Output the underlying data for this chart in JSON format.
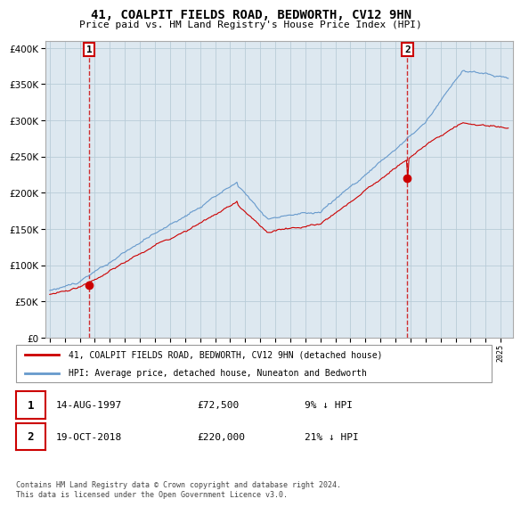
{
  "title": "41, COALPIT FIELDS ROAD, BEDWORTH, CV12 9HN",
  "subtitle": "Price paid vs. HM Land Registry's House Price Index (HPI)",
  "sale1_x": 1997.625,
  "sale1_y": 72500,
  "sale1_label": "14-AUG-1997",
  "sale1_pct": "9% ↓ HPI",
  "sale2_x": 2018.792,
  "sale2_y": 220000,
  "sale2_label": "19-OCT-2018",
  "sale2_pct": "21% ↓ HPI",
  "ylim": [
    0,
    410000
  ],
  "yticks": [
    0,
    50000,
    100000,
    150000,
    200000,
    250000,
    300000,
    350000,
    400000
  ],
  "xlim_left": 1994.7,
  "xlim_right": 2025.8,
  "legend_line1": "41, COALPIT FIELDS ROAD, BEDWORTH, CV12 9HN (detached house)",
  "legend_line2": "HPI: Average price, detached house, Nuneaton and Bedworth",
  "footnote": "Contains HM Land Registry data © Crown copyright and database right 2024.\nThis data is licensed under the Open Government Licence v3.0.",
  "hpi_color": "#6699cc",
  "price_color": "#cc0000",
  "bg_color": "#ffffff",
  "chart_bg": "#dde8f0",
  "grid_color": "#b8ccd8"
}
